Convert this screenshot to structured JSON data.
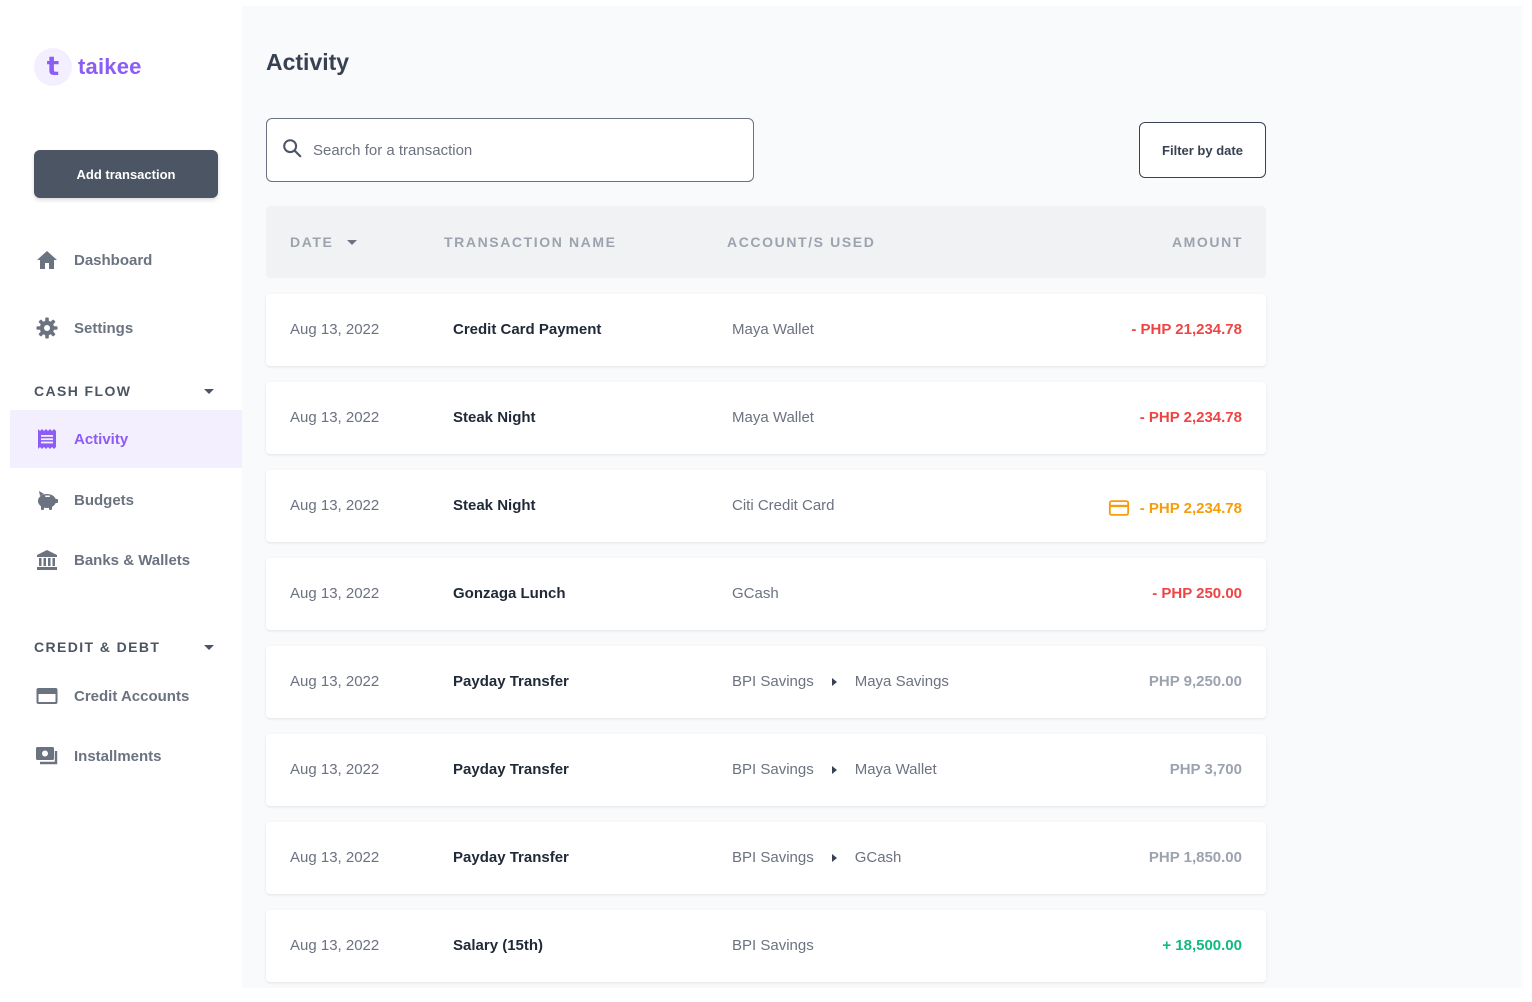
{
  "brand": {
    "logo_letter": "t",
    "name": "taikee"
  },
  "colors": {
    "accent": "#8b5cf6",
    "negative": "#ef4444",
    "credit": "#f59e0b",
    "positive": "#10b981",
    "neutral": "#9ca3af"
  },
  "sidebar": {
    "add_button": "Add transaction",
    "top_items": [
      {
        "label": "Dashboard",
        "icon": "home-icon"
      },
      {
        "label": "Settings",
        "icon": "gear-icon"
      }
    ],
    "sections": [
      {
        "title": "CASH FLOW",
        "items": [
          {
            "label": "Activity",
            "icon": "receipt-icon",
            "active": true
          },
          {
            "label": "Budgets",
            "icon": "piggy-bank-icon"
          },
          {
            "label": "Banks & Wallets",
            "icon": "bank-icon"
          }
        ]
      },
      {
        "title": "CREDIT & DEBT",
        "items": [
          {
            "label": "Credit Accounts",
            "icon": "credit-card-icon"
          },
          {
            "label": "Installments",
            "icon": "cash-icon"
          }
        ]
      }
    ]
  },
  "main": {
    "title": "Activity",
    "search": {
      "placeholder": "Search for a transaction",
      "value": ""
    },
    "filter_button": "Filter by date",
    "table": {
      "headers": {
        "date": "DATE",
        "name": "TRANSACTION NAME",
        "accounts": "ACCOUNT/S USED",
        "amount": "AMOUNT"
      },
      "rows": [
        {
          "date": "Aug 13, 2022",
          "name": "Credit Card Payment",
          "from": "Maya Wallet",
          "to": "",
          "amount": "- PHP 21,234.78",
          "type": "negative"
        },
        {
          "date": "Aug 13, 2022",
          "name": "Steak Night",
          "from": "Maya Wallet",
          "to": "",
          "amount": "- PHP 2,234.78",
          "type": "negative"
        },
        {
          "date": "Aug 13, 2022",
          "name": "Steak Night",
          "from": "Citi Credit Card",
          "to": "",
          "amount": "- PHP 2,234.78",
          "type": "credit"
        },
        {
          "date": "Aug 13, 2022",
          "name": "Gonzaga Lunch",
          "from": "GCash",
          "to": "",
          "amount": "- PHP 250.00",
          "type": "negative"
        },
        {
          "date": "Aug 13, 2022",
          "name": "Payday Transfer",
          "from": "BPI Savings",
          "to": "Maya Savings",
          "amount": "PHP 9,250.00",
          "type": "neutral"
        },
        {
          "date": "Aug 13, 2022",
          "name": "Payday Transfer",
          "from": "BPI Savings",
          "to": "Maya Wallet",
          "amount": "PHP 3,700",
          "type": "neutral"
        },
        {
          "date": "Aug 13, 2022",
          "name": "Payday Transfer",
          "from": "BPI Savings",
          "to": "GCash",
          "amount": "PHP 1,850.00",
          "type": "neutral"
        },
        {
          "date": "Aug 13, 2022",
          "name": "Salary (15th)",
          "from": "BPI Savings",
          "to": "",
          "amount": "+ 18,500.00",
          "type": "positive"
        }
      ]
    }
  }
}
